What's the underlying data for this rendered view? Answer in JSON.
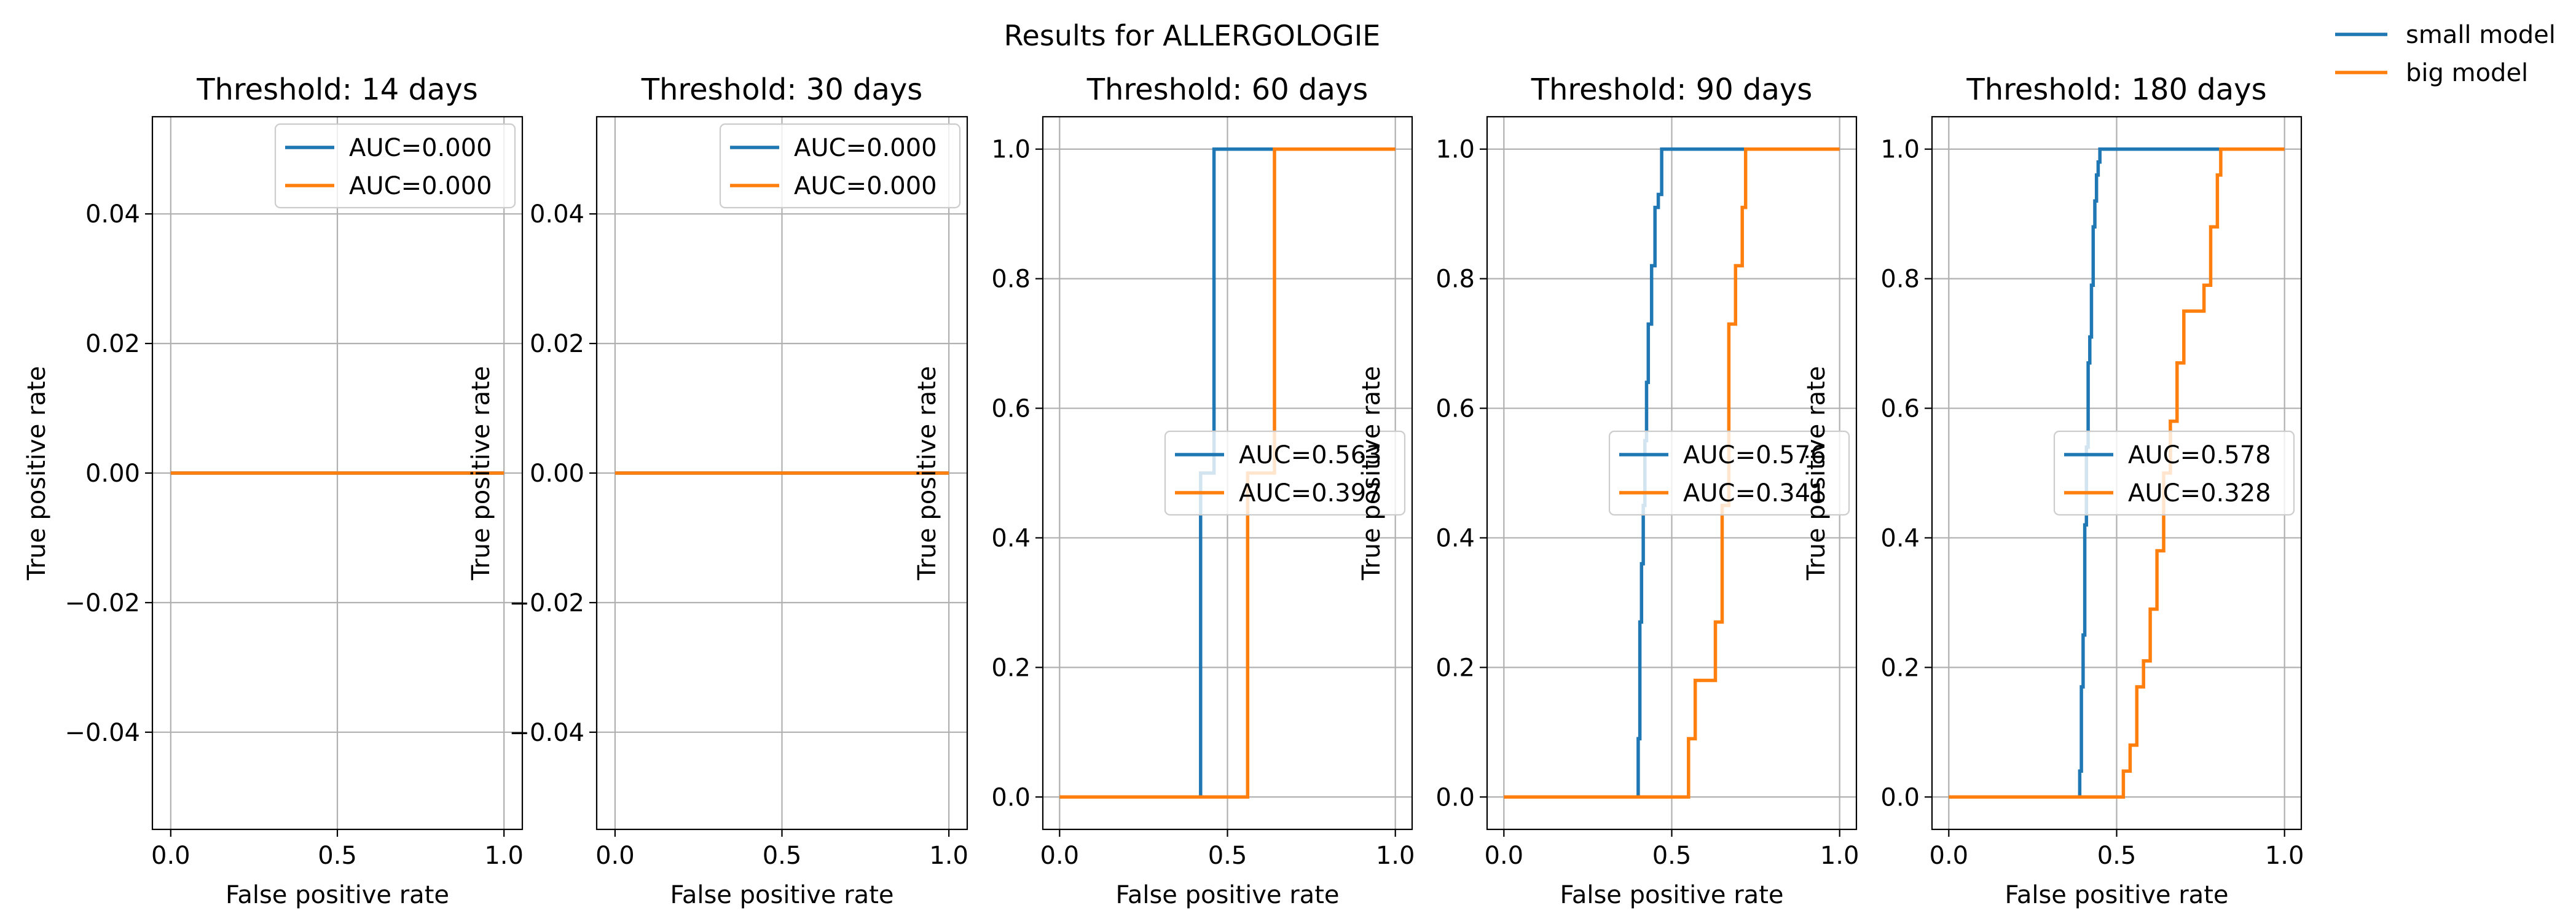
{
  "figure": {
    "title": "Results for ALLERGOLOGIE",
    "legend": {
      "placement": "top-right",
      "entries": [
        {
          "label": "small model",
          "color": "#1f77b4"
        },
        {
          "label": "big model",
          "color": "#ff7f0e"
        }
      ]
    }
  },
  "chart_data": [
    {
      "type": "line",
      "title": "Threshold: 14 days",
      "xlabel": "False positive rate",
      "ylabel": "True positive rate",
      "xlim": [
        -0.055,
        1.055
      ],
      "ylim": [
        -0.055,
        0.055
      ],
      "xticks": [
        0.0,
        0.5,
        1.0
      ],
      "xtick_labels": [
        "0.0",
        "0.5",
        "1.0"
      ],
      "yticks": [
        -0.04,
        -0.02,
        0.0,
        0.02,
        0.04
      ],
      "ytick_labels": [
        "−0.04",
        "−0.02",
        "0.00",
        "0.02",
        "0.04"
      ],
      "grid": true,
      "legend_placement": "upper right",
      "series": [
        {
          "name": "AUC=0.000",
          "color": "#1f77b4",
          "x": [
            0.0,
            1.0
          ],
          "y": [
            0.0,
            0.0
          ]
        },
        {
          "name": "AUC=0.000",
          "color": "#ff7f0e",
          "x": [
            0.0,
            1.0
          ],
          "y": [
            0.0,
            0.0
          ]
        }
      ]
    },
    {
      "type": "line",
      "title": "Threshold: 30 days",
      "xlabel": "False positive rate",
      "ylabel": "True positive rate",
      "xlim": [
        -0.055,
        1.055
      ],
      "ylim": [
        -0.055,
        0.055
      ],
      "xticks": [
        0.0,
        0.5,
        1.0
      ],
      "xtick_labels": [
        "0.0",
        "0.5",
        "1.0"
      ],
      "yticks": [
        -0.04,
        -0.02,
        0.0,
        0.02,
        0.04
      ],
      "ytick_labels": [
        "−0.04",
        "−0.02",
        "0.00",
        "0.02",
        "0.04"
      ],
      "grid": true,
      "legend_placement": "upper right",
      "series": [
        {
          "name": "AUC=0.000",
          "color": "#1f77b4",
          "x": [
            0.0,
            1.0
          ],
          "y": [
            0.0,
            0.0
          ]
        },
        {
          "name": "AUC=0.000",
          "color": "#ff7f0e",
          "x": [
            0.0,
            1.0
          ],
          "y": [
            0.0,
            0.0
          ]
        }
      ]
    },
    {
      "type": "line",
      "title": "Threshold: 60 days",
      "xlabel": "False positive rate",
      "ylabel": "True positive rate",
      "xlim": [
        -0.05,
        1.05
      ],
      "ylim": [
        -0.05,
        1.05
      ],
      "xticks": [
        0.0,
        0.5,
        1.0
      ],
      "xtick_labels": [
        "0.0",
        "0.5",
        "1.0"
      ],
      "yticks": [
        0.0,
        0.2,
        0.4,
        0.6,
        0.8,
        1.0
      ],
      "ytick_labels": [
        "0.0",
        "0.2",
        "0.4",
        "0.6",
        "0.8",
        "1.0"
      ],
      "grid": true,
      "legend_placement": "center right",
      "series": [
        {
          "name": "AUC=0.563",
          "color": "#1f77b4",
          "x": [
            0.0,
            0.42,
            0.42,
            0.44,
            0.44,
            0.46,
            0.46,
            1.0
          ],
          "y": [
            0.0,
            0.0,
            0.5,
            0.5,
            0.5,
            0.5,
            1.0,
            1.0
          ]
        },
        {
          "name": "AUC=0.397",
          "color": "#ff7f0e",
          "x": [
            0.0,
            0.56,
            0.56,
            0.64,
            0.64,
            1.0
          ],
          "y": [
            0.0,
            0.0,
            0.5,
            0.5,
            1.0,
            1.0
          ]
        }
      ]
    },
    {
      "type": "line",
      "title": "Threshold: 90 days",
      "xlabel": "False positive rate",
      "ylabel": "True positive rate",
      "xlim": [
        -0.05,
        1.05
      ],
      "ylim": [
        -0.05,
        1.05
      ],
      "xticks": [
        0.0,
        0.5,
        1.0
      ],
      "xtick_labels": [
        "0.0",
        "0.5",
        "1.0"
      ],
      "yticks": [
        0.0,
        0.2,
        0.4,
        0.6,
        0.8,
        1.0
      ],
      "ytick_labels": [
        "0.0",
        "0.2",
        "0.4",
        "0.6",
        "0.8",
        "1.0"
      ],
      "grid": true,
      "legend_placement": "center right",
      "series": [
        {
          "name": "AUC=0.576",
          "color": "#1f77b4",
          "x": [
            0.0,
            0.4,
            0.4,
            0.405,
            0.405,
            0.41,
            0.41,
            0.415,
            0.415,
            0.42,
            0.42,
            0.425,
            0.425,
            0.43,
            0.43,
            0.44,
            0.44,
            0.45,
            0.45,
            0.46,
            0.46,
            0.47,
            0.47,
            1.0
          ],
          "y": [
            0.0,
            0.0,
            0.09,
            0.09,
            0.27,
            0.27,
            0.36,
            0.36,
            0.45,
            0.45,
            0.55,
            0.55,
            0.64,
            0.64,
            0.73,
            0.73,
            0.82,
            0.82,
            0.91,
            0.91,
            0.93,
            0.93,
            1.0,
            1.0
          ]
        },
        {
          "name": "AUC=0.341",
          "color": "#ff7f0e",
          "x": [
            0.0,
            0.55,
            0.55,
            0.57,
            0.57,
            0.63,
            0.63,
            0.65,
            0.65,
            0.67,
            0.67,
            0.69,
            0.69,
            0.71,
            0.71,
            0.72,
            0.72,
            1.0
          ],
          "y": [
            0.0,
            0.0,
            0.09,
            0.09,
            0.18,
            0.18,
            0.27,
            0.27,
            0.45,
            0.45,
            0.73,
            0.73,
            0.82,
            0.82,
            0.91,
            0.91,
            1.0,
            1.0
          ]
        }
      ]
    },
    {
      "type": "line",
      "title": "Threshold: 180 days",
      "xlabel": "False positive rate",
      "ylabel": "True positive rate",
      "xlim": [
        -0.05,
        1.05
      ],
      "ylim": [
        -0.05,
        1.05
      ],
      "xticks": [
        0.0,
        0.5,
        1.0
      ],
      "xtick_labels": [
        "0.0",
        "0.5",
        "1.0"
      ],
      "yticks": [
        0.0,
        0.2,
        0.4,
        0.6,
        0.8,
        1.0
      ],
      "ytick_labels": [
        "0.0",
        "0.2",
        "0.4",
        "0.6",
        "0.8",
        "1.0"
      ],
      "grid": true,
      "legend_placement": "center right",
      "series": [
        {
          "name": "AUC=0.578",
          "color": "#1f77b4",
          "x": [
            0.0,
            0.39,
            0.39,
            0.395,
            0.395,
            0.4,
            0.4,
            0.405,
            0.405,
            0.41,
            0.41,
            0.415,
            0.415,
            0.42,
            0.42,
            0.425,
            0.425,
            0.43,
            0.43,
            0.435,
            0.435,
            0.44,
            0.44,
            0.445,
            0.445,
            0.45,
            0.45,
            1.0
          ],
          "y": [
            0.0,
            0.0,
            0.04,
            0.04,
            0.17,
            0.17,
            0.25,
            0.25,
            0.42,
            0.42,
            0.54,
            0.54,
            0.67,
            0.67,
            0.71,
            0.71,
            0.79,
            0.79,
            0.88,
            0.88,
            0.92,
            0.92,
            0.96,
            0.96,
            0.98,
            0.98,
            1.0,
            1.0
          ]
        },
        {
          "name": "AUC=0.328",
          "color": "#ff7f0e",
          "x": [
            0.0,
            0.52,
            0.52,
            0.54,
            0.54,
            0.56,
            0.56,
            0.58,
            0.58,
            0.6,
            0.6,
            0.62,
            0.62,
            0.64,
            0.64,
            0.66,
            0.66,
            0.68,
            0.68,
            0.7,
            0.7,
            0.76,
            0.76,
            0.78,
            0.78,
            0.8,
            0.8,
            0.81,
            0.81,
            1.0
          ],
          "y": [
            0.0,
            0.0,
            0.04,
            0.04,
            0.08,
            0.08,
            0.17,
            0.17,
            0.21,
            0.21,
            0.29,
            0.29,
            0.38,
            0.38,
            0.5,
            0.5,
            0.58,
            0.58,
            0.67,
            0.67,
            0.75,
            0.75,
            0.79,
            0.79,
            0.88,
            0.88,
            0.96,
            0.96,
            1.0,
            1.0
          ]
        }
      ]
    }
  ]
}
